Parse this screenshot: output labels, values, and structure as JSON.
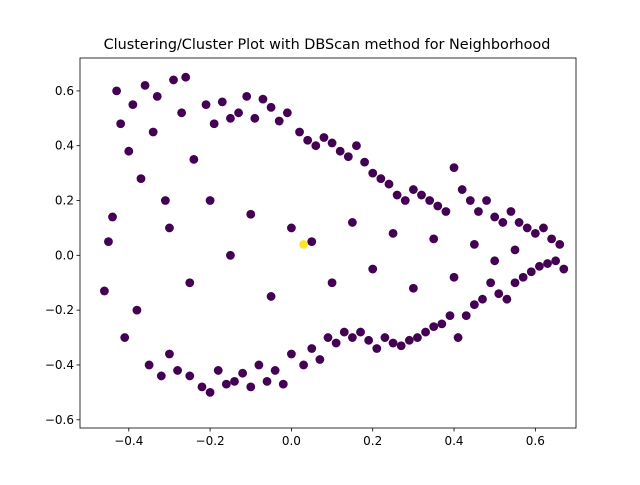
{
  "chart_data": {
    "type": "scatter",
    "title": "Clustering/Cluster Plot with DBScan method for Neighborhood",
    "xlabel": "",
    "ylabel": "",
    "xlim": [
      -0.52,
      0.7
    ],
    "ylim": [
      -0.63,
      0.72
    ],
    "x_ticks": [
      -0.4,
      -0.2,
      0.0,
      0.2,
      0.4,
      0.6
    ],
    "x_tick_labels": [
      "−0.4",
      "−0.2",
      "0.0",
      "0.2",
      "0.4",
      "0.6"
    ],
    "y_ticks": [
      -0.6,
      -0.4,
      -0.2,
      0.0,
      0.2,
      0.4,
      0.6
    ],
    "y_tick_labels": [
      "−0.6",
      "−0.4",
      "−0.2",
      "0.0",
      "0.2",
      "0.4",
      "0.6"
    ],
    "grid": false,
    "legend": "none",
    "series": [
      {
        "cluster": 0,
        "color": "#440154",
        "points": [
          [
            -0.46,
            -0.13
          ],
          [
            -0.45,
            0.05
          ],
          [
            -0.44,
            0.14
          ],
          [
            -0.43,
            0.6
          ],
          [
            -0.42,
            0.48
          ],
          [
            -0.41,
            -0.3
          ],
          [
            -0.4,
            0.38
          ],
          [
            -0.39,
            0.55
          ],
          [
            -0.38,
            -0.2
          ],
          [
            -0.37,
            0.28
          ],
          [
            -0.36,
            0.62
          ],
          [
            -0.35,
            -0.4
          ],
          [
            -0.34,
            0.45
          ],
          [
            -0.33,
            0.58
          ],
          [
            -0.32,
            -0.44
          ],
          [
            -0.31,
            0.2
          ],
          [
            -0.3,
            -0.36
          ],
          [
            -0.29,
            0.64
          ],
          [
            -0.28,
            -0.42
          ],
          [
            -0.27,
            0.52
          ],
          [
            -0.26,
            0.65
          ],
          [
            -0.25,
            -0.44
          ],
          [
            -0.24,
            0.35
          ],
          [
            -0.22,
            -0.48
          ],
          [
            -0.21,
            0.55
          ],
          [
            -0.2,
            -0.5
          ],
          [
            -0.19,
            0.48
          ],
          [
            -0.18,
            -0.42
          ],
          [
            -0.17,
            0.56
          ],
          [
            -0.16,
            -0.47
          ],
          [
            -0.15,
            0.5
          ],
          [
            -0.14,
            -0.46
          ],
          [
            -0.13,
            0.52
          ],
          [
            -0.12,
            -0.43
          ],
          [
            -0.11,
            0.58
          ],
          [
            -0.1,
            -0.48
          ],
          [
            -0.09,
            0.5
          ],
          [
            -0.08,
            -0.4
          ],
          [
            -0.07,
            0.57
          ],
          [
            -0.06,
            -0.46
          ],
          [
            -0.05,
            0.54
          ],
          [
            -0.04,
            -0.42
          ],
          [
            -0.03,
            0.49
          ],
          [
            -0.02,
            -0.47
          ],
          [
            -0.01,
            0.52
          ],
          [
            0.0,
            -0.36
          ],
          [
            0.02,
            0.45
          ],
          [
            0.03,
            -0.4
          ],
          [
            0.04,
            0.42
          ],
          [
            0.05,
            -0.34
          ],
          [
            0.06,
            0.4
          ],
          [
            0.07,
            -0.38
          ],
          [
            0.08,
            0.43
          ],
          [
            0.09,
            -0.3
          ],
          [
            0.1,
            0.41
          ],
          [
            0.11,
            -0.32
          ],
          [
            0.12,
            0.38
          ],
          [
            0.13,
            -0.28
          ],
          [
            0.14,
            0.36
          ],
          [
            0.15,
            -0.3
          ],
          [
            0.16,
            0.4
          ],
          [
            0.17,
            -0.28
          ],
          [
            0.18,
            0.34
          ],
          [
            0.19,
            -0.31
          ],
          [
            0.2,
            0.3
          ],
          [
            0.21,
            -0.34
          ],
          [
            0.22,
            0.28
          ],
          [
            0.23,
            -0.3
          ],
          [
            0.24,
            0.26
          ],
          [
            0.25,
            -0.32
          ],
          [
            0.26,
            0.22
          ],
          [
            0.27,
            -0.33
          ],
          [
            0.28,
            0.2
          ],
          [
            0.29,
            -0.31
          ],
          [
            0.3,
            0.24
          ],
          [
            0.31,
            -0.3
          ],
          [
            0.32,
            0.22
          ],
          [
            0.33,
            -0.28
          ],
          [
            0.34,
            0.2
          ],
          [
            0.35,
            -0.26
          ],
          [
            0.36,
            0.18
          ],
          [
            0.37,
            -0.25
          ],
          [
            0.38,
            0.16
          ],
          [
            0.39,
            -0.22
          ],
          [
            0.4,
            0.32
          ],
          [
            0.41,
            -0.3
          ],
          [
            0.42,
            0.24
          ],
          [
            0.43,
            -0.22
          ],
          [
            0.44,
            0.2
          ],
          [
            0.45,
            -0.18
          ],
          [
            0.46,
            0.16
          ],
          [
            0.47,
            -0.16
          ],
          [
            0.48,
            0.2
          ],
          [
            0.49,
            -0.1
          ],
          [
            0.5,
            0.14
          ],
          [
            0.51,
            -0.14
          ],
          [
            0.52,
            0.12
          ],
          [
            0.53,
            -0.16
          ],
          [
            0.54,
            0.16
          ],
          [
            0.55,
            -0.1
          ],
          [
            0.56,
            0.12
          ],
          [
            0.57,
            -0.08
          ],
          [
            0.58,
            0.1
          ],
          [
            0.59,
            -0.06
          ],
          [
            0.6,
            0.08
          ],
          [
            0.61,
            -0.04
          ],
          [
            0.62,
            0.1
          ],
          [
            0.63,
            -0.03
          ],
          [
            0.64,
            0.06
          ],
          [
            0.65,
            -0.02
          ],
          [
            0.66,
            0.04
          ],
          [
            0.67,
            -0.05
          ],
          [
            -0.3,
            0.1
          ],
          [
            -0.25,
            -0.1
          ],
          [
            -0.2,
            0.2
          ],
          [
            -0.15,
            0.0
          ],
          [
            -0.1,
            0.15
          ],
          [
            -0.05,
            -0.15
          ],
          [
            0.0,
            0.1
          ],
          [
            0.05,
            0.05
          ],
          [
            0.1,
            -0.1
          ],
          [
            0.15,
            0.12
          ],
          [
            0.2,
            -0.05
          ],
          [
            0.25,
            0.08
          ],
          [
            0.3,
            -0.12
          ],
          [
            0.35,
            0.06
          ],
          [
            0.4,
            -0.08
          ],
          [
            0.45,
            0.04
          ],
          [
            0.5,
            -0.02
          ],
          [
            0.55,
            0.02
          ]
        ]
      },
      {
        "cluster": 1,
        "color": "#fde725",
        "points": [
          [
            0.03,
            0.04
          ]
        ]
      }
    ]
  }
}
